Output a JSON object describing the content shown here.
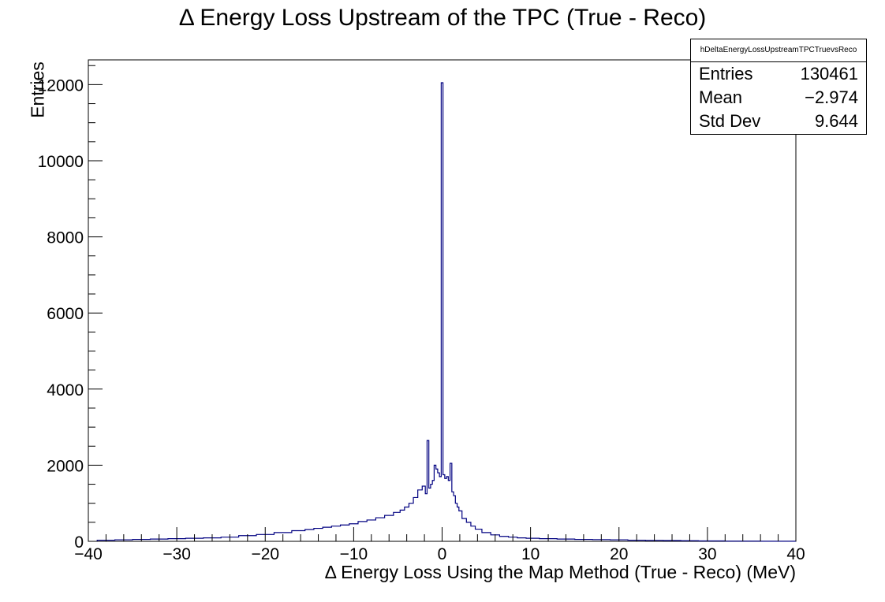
{
  "chart_data": {
    "type": "histogram",
    "title": "Δ Energy Loss Upstream of the TPC (True - Reco)",
    "xlabel": "Δ Energy Loss Using the Map Method (True - Reco) (MeV)",
    "ylabel": "Entries",
    "xlim": [
      -40,
      40
    ],
    "ylim": [
      0,
      12650
    ],
    "x_ticks": [
      -40,
      -30,
      -20,
      -10,
      0,
      10,
      20,
      30,
      40
    ],
    "x_tick_labels": [
      "−40",
      "−30",
      "−20",
      "−10",
      "0",
      "10",
      "20",
      "30",
      "40"
    ],
    "y_ticks": [
      0,
      2000,
      4000,
      6000,
      8000,
      10000,
      12000
    ],
    "y_tick_labels": [
      "0",
      "2000",
      "4000",
      "6000",
      "8000",
      "10000",
      "12000"
    ],
    "line_color": "#000080",
    "grid": false,
    "series": [
      {
        "bin_centers": [
          -38,
          -36,
          -34,
          -32,
          -30,
          -28,
          -26,
          -24,
          -22,
          -20,
          -18,
          -16,
          -15,
          -14,
          -13,
          -12,
          -11,
          -10,
          -9,
          -8,
          -7,
          -6,
          -5,
          -4.5,
          -4,
          -3.5,
          -3,
          -2.5,
          -2,
          -1.8,
          -1.6,
          -1.4,
          -1.2,
          -1,
          -0.8,
          -0.6,
          -0.4,
          -0.2,
          0,
          0.2,
          0.4,
          0.6,
          0.8,
          1,
          1.2,
          1.4,
          1.6,
          1.8,
          2,
          2.5,
          3,
          3.5,
          4,
          5,
          6,
          7,
          8,
          9,
          10,
          12,
          14,
          16,
          18,
          20,
          22,
          24,
          26,
          28,
          30,
          34,
          38
        ],
        "values": [
          30,
          40,
          50,
          60,
          70,
          80,
          90,
          110,
          150,
          180,
          230,
          280,
          310,
          340,
          370,
          400,
          430,
          460,
          520,
          560,
          620,
          680,
          760,
          820,
          900,
          1000,
          1150,
          1350,
          1450,
          1250,
          2650,
          1400,
          1500,
          1600,
          2000,
          1900,
          1800,
          1700,
          12050,
          1750,
          1650,
          1700,
          1600,
          2050,
          1300,
          1200,
          1000,
          900,
          800,
          600,
          500,
          400,
          320,
          230,
          170,
          130,
          110,
          90,
          80,
          70,
          60,
          50,
          45,
          40,
          30,
          25,
          20,
          15,
          10,
          5,
          3
        ]
      }
    ]
  },
  "stats_box": {
    "name": "hDeltaEnergyLossUpstreamTPCTruevsReco",
    "entries_label": "Entries",
    "entries_value": "130461",
    "mean_label": "Mean",
    "mean_value": "−2.974",
    "stddev_label": "Std Dev",
    "stddev_value": "9.644"
  }
}
